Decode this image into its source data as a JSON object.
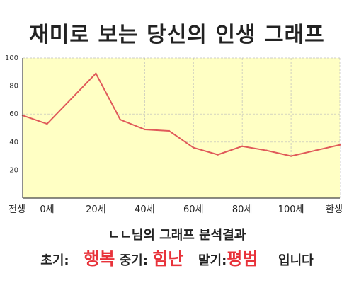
{
  "title": "재미로 보는 당신의 인생 그래프",
  "summary": {
    "heading": "ㄴㄴ님의 그래프 분석결과",
    "early_label": "초기:",
    "early_value": "행복",
    "mid_label": "중기:",
    "mid_value": "힘난",
    "late_label": "말기:",
    "late_value": "평범",
    "suffix": "입니다"
  },
  "colors": {
    "line": "#e05a5a",
    "fill": "#ffffc4",
    "verdict": "#e8323a"
  },
  "chart_data": {
    "type": "area",
    "title": "",
    "xlabel": "",
    "ylabel": "",
    "ylim": [
      0,
      100
    ],
    "yticks": [
      20,
      40,
      60,
      80,
      100
    ],
    "grid": true,
    "legend": "none",
    "xtick_labels": [
      "전생",
      "0세",
      "20세",
      "40세",
      "60세",
      "80세",
      "100세",
      "환생"
    ],
    "x": [
      "전생",
      "0세",
      "",
      "20세",
      "",
      "40세",
      "",
      "60세",
      "",
      "80세",
      "",
      "100세",
      "",
      "환생"
    ],
    "series": [
      {
        "values": [
          59,
          53,
          71,
          89,
          56,
          49,
          48,
          36,
          31,
          37,
          34,
          30,
          34,
          38
        ]
      }
    ]
  }
}
